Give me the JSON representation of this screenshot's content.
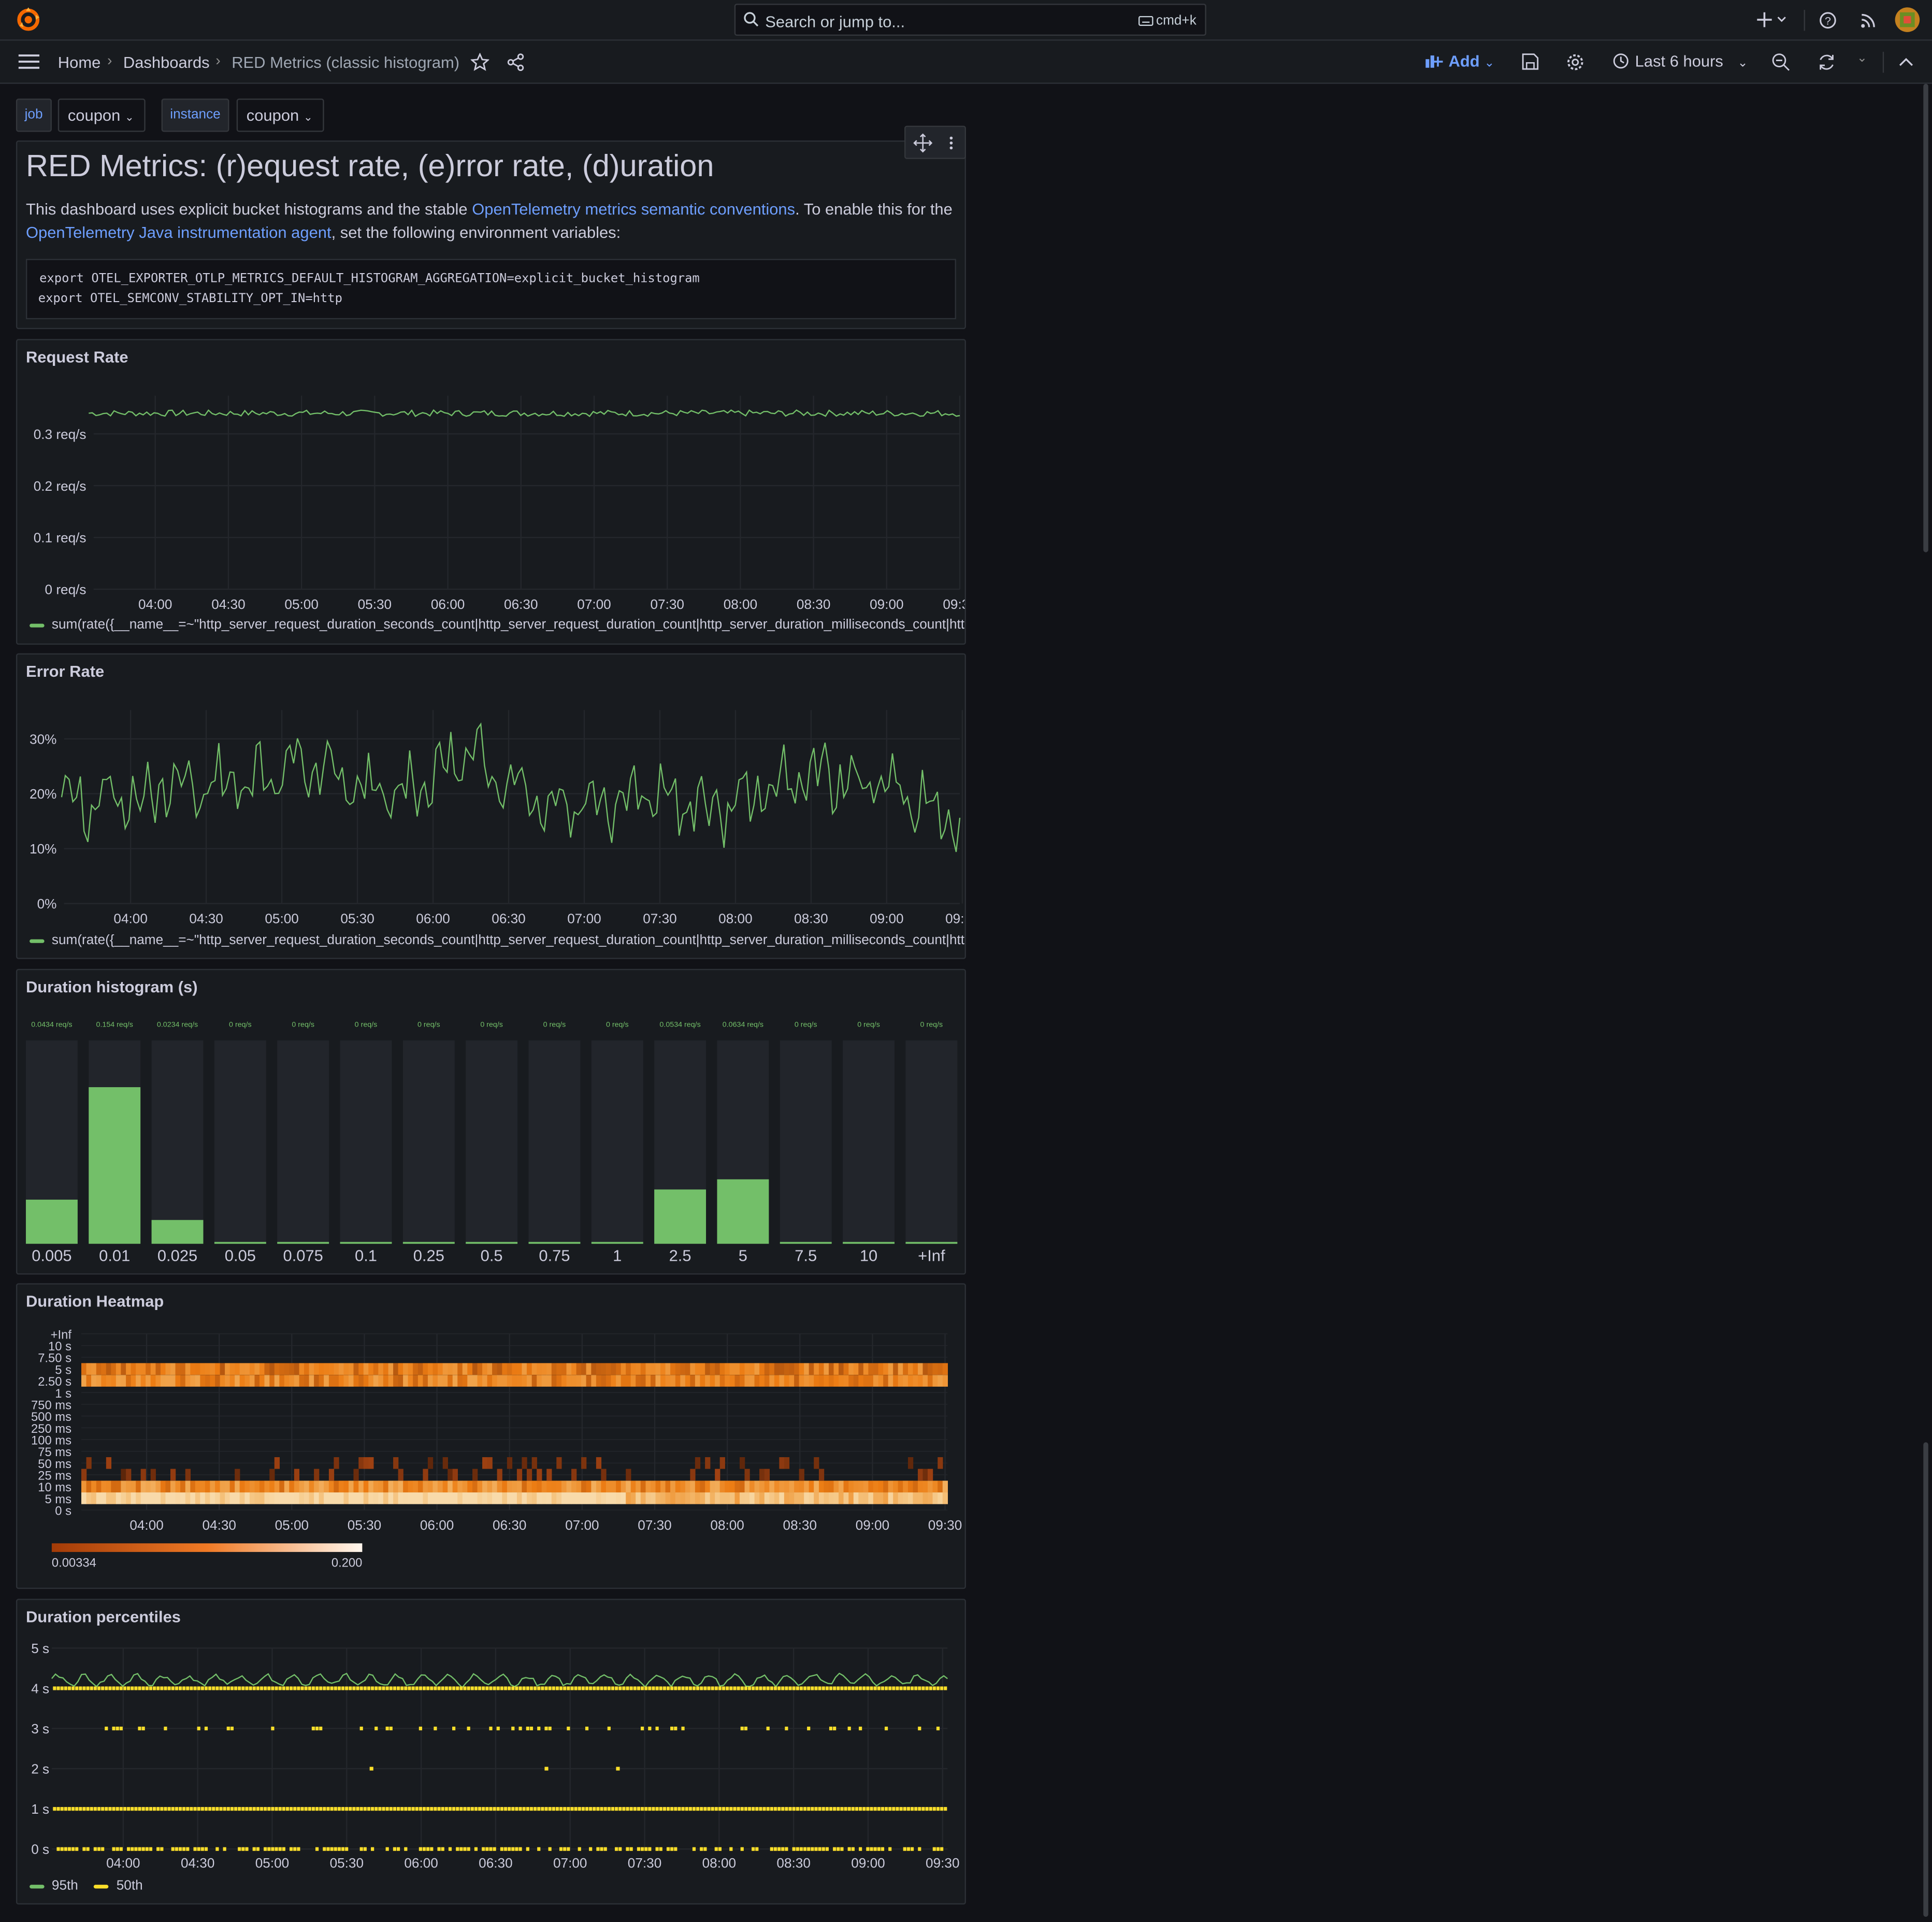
{
  "topbar": {
    "search_placeholder": "Search or jump to...",
    "search_shortcut": "cmd+k",
    "add_icon": "plus-icon",
    "icons": [
      "help-icon",
      "rss-icon",
      "avatar"
    ]
  },
  "breadcrumb": {
    "home": "Home",
    "dashboards": "Dashboards",
    "current": "RED Metrics (classic histogram)"
  },
  "toolbar": {
    "add_label": "Add",
    "time_range": "Last 6 hours"
  },
  "variables": [
    {
      "label": "job",
      "value": "coupon"
    },
    {
      "label": "instance",
      "value": "coupon"
    }
  ],
  "text_panel": {
    "title": "RED Metrics: (r)equest rate, (e)rror rate, (d)uration",
    "para_prefix": "This dashboard uses explicit bucket histograms and the stable ",
    "link1": "OpenTelemetry metrics semantic conventions",
    "para_mid": ". To enable this for the ",
    "link2": "OpenTelemetry Java instrumentation agent",
    "para_suffix": ", set the following environment variables:",
    "code_line1": "export OTEL_EXPORTER_OTLP_METRICS_DEFAULT_HISTOGRAM_AGGREGATION=explicit_bucket_histogram",
    "code_line2": "export OTEL_SEMCONV_STABILITY_OPT_IN=http"
  },
  "colors": {
    "green": "#73bf69",
    "yellow": "#fade2a",
    "link": "#6e9fff",
    "panel_bg": "#181b1f",
    "page_bg": "#111217"
  },
  "x_times": [
    "04:00",
    "04:30",
    "05:00",
    "05:30",
    "06:00",
    "06:30",
    "07:00",
    "07:30",
    "08:00",
    "08:30",
    "09:00",
    "09:30"
  ],
  "request_rate": {
    "title": "Request Rate",
    "yticks": [
      "0.3 req/s",
      "0.2 req/s",
      "0.1 req/s",
      "0 req/s"
    ],
    "legend": "sum(rate({__name__=~\"http_server_request_duration_seconds_count|http_server_request_duration_count|http_server_duration_milliseconds_count|http"
  },
  "error_rate": {
    "title": "Error Rate",
    "yticks": [
      "30%",
      "20%",
      "10%",
      "0%"
    ],
    "legend": "sum(rate({__name__=~\"http_server_request_duration_seconds_count|http_server_request_duration_count|http_server_duration_milliseconds_count|http"
  },
  "histogram": {
    "title": "Duration histogram (s)"
  },
  "heatmap": {
    "title": "Duration Heatmap",
    "ybuckets": [
      "+Inf",
      "10 s",
      "7.50 s",
      "5 s",
      "2.50 s",
      "1 s",
      "750 ms",
      "500 ms",
      "250 ms",
      "100 ms",
      "75 ms",
      "50 ms",
      "25 ms",
      "10 ms",
      "5 ms",
      "0 s"
    ],
    "scale_min": "0.00334",
    "scale_max": "0.200"
  },
  "percentiles": {
    "title": "Duration percentiles",
    "yticks": [
      "5 s",
      "4 s",
      "3 s",
      "2 s",
      "1 s",
      "0 s"
    ],
    "legend": [
      {
        "name": "95th",
        "color": "#73bf69"
      },
      {
        "name": "50th",
        "color": "#fade2a"
      }
    ]
  },
  "chart_data": [
    {
      "type": "line",
      "title": "Request Rate",
      "x": [
        "04:00",
        "04:30",
        "05:00",
        "05:30",
        "06:00",
        "06:30",
        "07:00",
        "07:30",
        "08:00",
        "08:30",
        "09:00",
        "09:30"
      ],
      "series": [
        {
          "name": "sum(rate({__name__=~\"http_server_request_duration_seconds_count|http_server_request_duration_count|http_server_duration_milliseconds_count|http",
          "values": [
            0.34,
            0.34,
            0.34,
            0.34,
            0.34,
            0.34,
            0.34,
            0.34,
            0.34,
            0.34,
            0.34,
            0.34
          ]
        }
      ],
      "ylim": [
        0,
        0.35
      ],
      "unit": "req/s"
    },
    {
      "type": "line",
      "title": "Error Rate",
      "x": [
        "04:00",
        "04:30",
        "05:00",
        "05:30",
        "06:00",
        "06:30",
        "07:00",
        "07:30",
        "08:00",
        "08:30",
        "09:00",
        "09:30"
      ],
      "series": [
        {
          "name": "sum(rate({__name__=~\"http_server_request_duration_seconds_count|http_server_request_duration_count|http_server_duration_milliseconds_count|http",
          "values": [
            18,
            20,
            22,
            25,
            19,
            27,
            18,
            20,
            17,
            23,
            22,
            14
          ]
        }
      ],
      "ylim": [
        0,
        33
      ],
      "unit": "%"
    },
    {
      "type": "bar",
      "title": "Duration histogram (s)",
      "categories": [
        "0.005",
        "0.01",
        "0.025",
        "0.05",
        "0.075",
        "0.1",
        "0.25",
        "0.5",
        "0.75",
        "1",
        "2.5",
        "5",
        "7.5",
        "10",
        "+Inf"
      ],
      "values": [
        0.0434,
        0.154,
        0.0234,
        0,
        0,
        0,
        0,
        0,
        0,
        0,
        0.0534,
        0.0634,
        0,
        0,
        0
      ],
      "labels": [
        "0.0434 req/s",
        "0.154 req/s",
        "0.0234 req/s",
        "0 req/s",
        "0 req/s",
        "0 req/s",
        "0 req/s",
        "0 req/s",
        "0 req/s",
        "0 req/s",
        "0.0534 req/s",
        "0.0634 req/s",
        "0 req/s",
        "0 req/s",
        "0 req/s"
      ],
      "ylim": [
        0,
        0.2
      ]
    },
    {
      "type": "heatmap",
      "title": "Duration Heatmap",
      "x": [
        "04:00",
        "04:30",
        "05:00",
        "05:30",
        "06:00",
        "06:30",
        "07:00",
        "07:30",
        "08:00",
        "08:30",
        "09:00",
        "09:30"
      ],
      "y": [
        "+Inf",
        "10 s",
        "7.50 s",
        "5 s",
        "2.50 s",
        "1 s",
        "750 ms",
        "500 ms",
        "250 ms",
        "100 ms",
        "75 ms",
        "50 ms",
        "25 ms",
        "10 ms",
        "5 ms",
        "0 s"
      ],
      "color_range": [
        0.00334,
        0.2
      ]
    },
    {
      "type": "scatter",
      "title": "Duration percentiles",
      "x": [
        "04:00",
        "04:30",
        "05:00",
        "05:30",
        "06:00",
        "06:30",
        "07:00",
        "07:30",
        "08:00",
        "08:30",
        "09:00",
        "09:30"
      ],
      "series": [
        {
          "name": "95th",
          "values": [
            4.2,
            4.2,
            4.3,
            4.2,
            4.2,
            4.3,
            4.2,
            4.2,
            4.2,
            4.3,
            4.2,
            4.3
          ]
        },
        {
          "name": "50th",
          "values": [
            1.0,
            1.0,
            1.0,
            1.0,
            1.0,
            1.0,
            1.0,
            1.0,
            1.0,
            1.0,
            1.0,
            1.0
          ]
        }
      ],
      "ylim": [
        0,
        5
      ],
      "unit": "s"
    }
  ]
}
